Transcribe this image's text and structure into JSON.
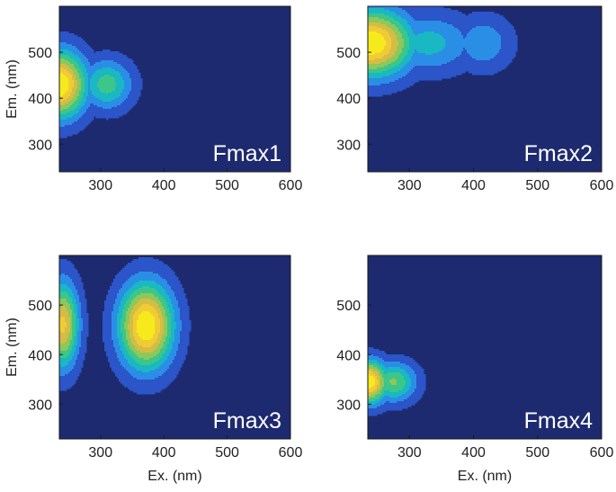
{
  "figure": {
    "colors": {
      "background_level": "#1d2a6f",
      "contour_line": "#0a0a0a",
      "levels": [
        "#1d2a6f",
        "#2b55c9",
        "#2a8ee6",
        "#19b8c2",
        "#3cc68a",
        "#8cc85a",
        "#d4bd46",
        "#f0cc34",
        "#f7ea1c"
      ]
    }
  },
  "chart_data": [
    {
      "type": "heatmap",
      "panel_label": "Fmax1",
      "xlabel": "",
      "ylabel": "Em. (nm)",
      "x_range": [
        235,
        600
      ],
      "y_range": [
        240,
        600
      ],
      "x_ticks": [
        300,
        400,
        500,
        600
      ],
      "y_ticks": [
        300,
        400,
        500
      ],
      "peaks": [
        {
          "ex": 235,
          "em": 430,
          "intensity": 1.0,
          "ex_sd": 30,
          "em_sd": 50
        },
        {
          "ex": 310,
          "em": 430,
          "intensity": 0.48,
          "ex_sd": 28,
          "em_sd": 38
        }
      ]
    },
    {
      "type": "heatmap",
      "panel_label": "Fmax2",
      "xlabel": "",
      "ylabel": "",
      "x_range": [
        235,
        600
      ],
      "y_range": [
        240,
        600
      ],
      "x_ticks": [
        300,
        400,
        500,
        600
      ],
      "y_ticks": [
        300,
        400,
        500
      ],
      "peaks": [
        {
          "ex": 240,
          "em": 520,
          "intensity": 1.0,
          "ex_sd": 45,
          "em_sd": 50
        },
        {
          "ex": 330,
          "em": 520,
          "intensity": 0.35,
          "ex_sd": 50,
          "em_sd": 45
        },
        {
          "ex": 415,
          "em": 520,
          "intensity": 0.28,
          "ex_sd": 32,
          "em_sd": 42
        }
      ]
    },
    {
      "type": "heatmap",
      "panel_label": "Fmax3",
      "xlabel": "Ex. (nm)",
      "ylabel": "Em. (nm)",
      "x_range": [
        235,
        600
      ],
      "y_range": [
        230,
        600
      ],
      "x_ticks": [
        300,
        400,
        500,
        600
      ],
      "y_ticks": [
        300,
        400,
        500
      ],
      "peaks": [
        {
          "ex": 240,
          "em": 460,
          "intensity": 0.8,
          "ex_sd": 18,
          "em_sd": 60
        },
        {
          "ex": 372,
          "em": 458,
          "intensity": 1.0,
          "ex_sd": 30,
          "em_sd": 60
        }
      ]
    },
    {
      "type": "heatmap",
      "panel_label": "Fmax4",
      "xlabel": "Ex. (nm)",
      "ylabel": "",
      "x_range": [
        235,
        600
      ],
      "y_range": [
        230,
        600
      ],
      "x_ticks": [
        300,
        400,
        500,
        600
      ],
      "y_ticks": [
        300,
        400,
        500
      ],
      "peaks": [
        {
          "ex": 235,
          "em": 345,
          "intensity": 1.0,
          "ex_sd": 22,
          "em_sd": 30
        },
        {
          "ex": 275,
          "em": 345,
          "intensity": 0.55,
          "ex_sd": 25,
          "em_sd": 28
        }
      ]
    }
  ]
}
